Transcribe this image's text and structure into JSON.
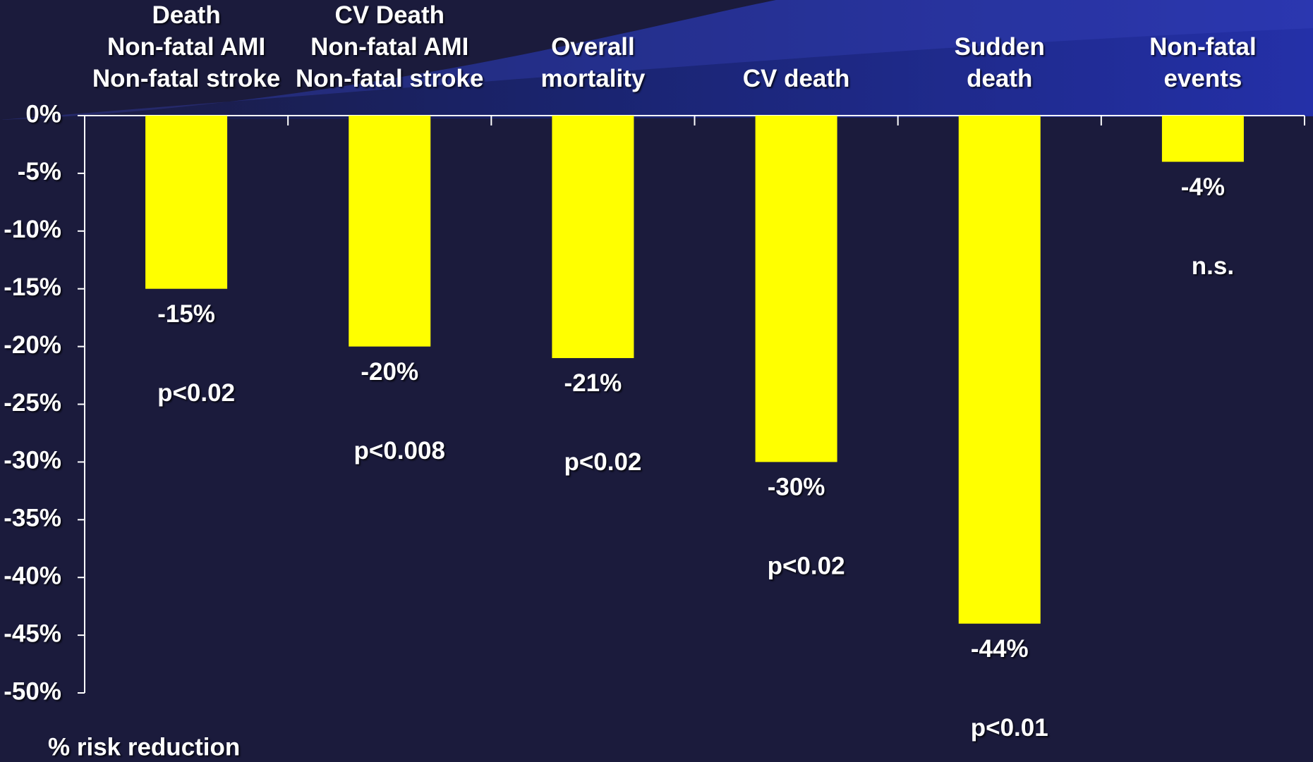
{
  "chart_data": {
    "type": "bar",
    "categories": [
      "Death\nNon-fatal AMI\nNon-fatal stroke",
      "CV Death\nNon-fatal AMI\nNon-fatal stroke",
      "Overall\nmortality",
      "CV death",
      "Sudden\ndeath",
      "Non-fatal\nevents"
    ],
    "values": [
      -15,
      -20,
      -21,
      -30,
      -44,
      -4
    ],
    "value_labels": [
      "-15%",
      "-20%",
      "-21%",
      "-30%",
      "-44%",
      "-4%"
    ],
    "annotations": [
      "p<0.02",
      "p<0.008",
      "p<0.02",
      "p<0.02",
      "p<0.01",
      "n.s."
    ],
    "color": "#ffff00",
    "ylabel": "% risk reduction",
    "ylim": [
      -50,
      0
    ],
    "yticks": [
      {
        "value": 0,
        "label": "0%"
      },
      {
        "value": -5,
        "label": "-5%"
      },
      {
        "value": -10,
        "label": "-10%"
      },
      {
        "value": -15,
        "label": "-15%"
      },
      {
        "value": -20,
        "label": "-20%"
      },
      {
        "value": -25,
        "label": "-25%"
      },
      {
        "value": -30,
        "label": "-30%"
      },
      {
        "value": -35,
        "label": "-35%"
      },
      {
        "value": -40,
        "label": "-40%"
      },
      {
        "value": -45,
        "label": "-45%"
      },
      {
        "value": -50,
        "label": "-50%"
      }
    ],
    "grid": false
  }
}
